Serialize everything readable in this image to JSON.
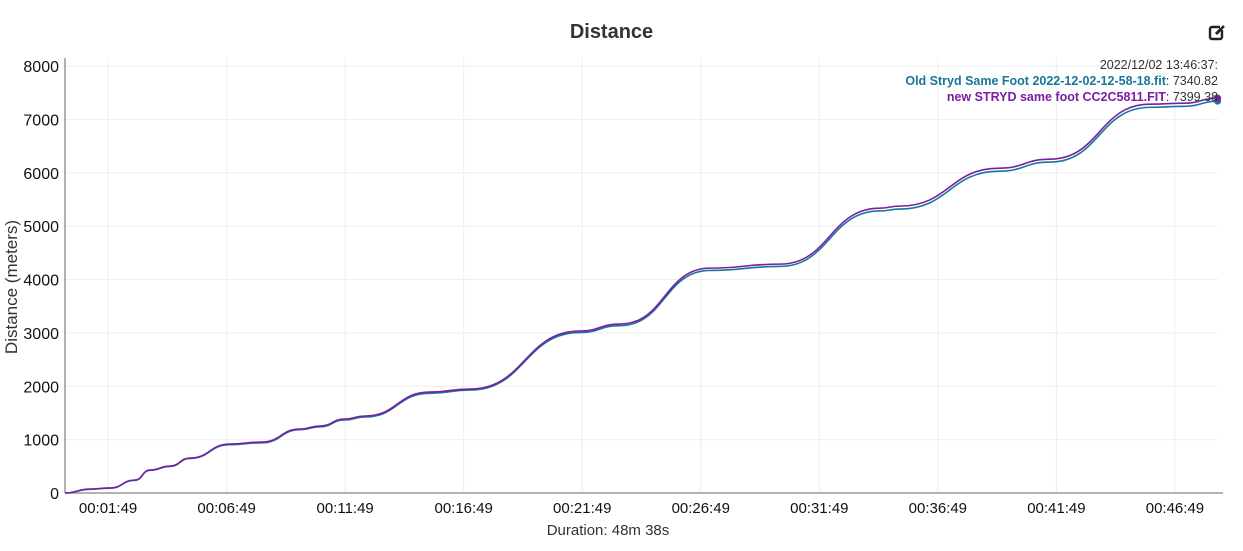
{
  "chart_data": {
    "type": "line",
    "title": "Distance",
    "xlabel": "Duration: 48m 38s",
    "ylabel": "Distance (meters)",
    "x_unit": "seconds elapsed",
    "xlim": [
      0,
      2918
    ],
    "ylim": [
      0,
      8150
    ],
    "yticks": [
      0,
      1000,
      2000,
      3000,
      4000,
      5000,
      6000,
      7000,
      8000
    ],
    "xticks": [
      {
        "value": 109,
        "label": "00:01:49"
      },
      {
        "value": 409,
        "label": "00:06:49"
      },
      {
        "value": 709,
        "label": "00:11:49"
      },
      {
        "value": 1009,
        "label": "00:16:49"
      },
      {
        "value": 1309,
        "label": "00:21:49"
      },
      {
        "value": 1609,
        "label": "00:26:49"
      },
      {
        "value": 1909,
        "label": "00:31:49"
      },
      {
        "value": 2209,
        "label": "00:36:49"
      },
      {
        "value": 2509,
        "label": "00:41:49"
      },
      {
        "value": 2809,
        "label": "00:46:49"
      }
    ],
    "grid": true,
    "x": [
      0,
      63,
      114,
      177,
      215,
      266,
      316,
      417,
      498,
      595,
      645,
      708,
      759,
      923,
      1025,
      1303,
      1404,
      1632,
      1809,
      2062,
      2112,
      2365,
      2492,
      2745,
      2834,
      2917
    ],
    "series": [
      {
        "name": "Old Stryd Same Foot 2022-12-02-12-58-18.fit",
        "color": "#17779a",
        "values": [
          0,
          70,
          90,
          238,
          425,
          498,
          648,
          905,
          940,
          1185,
          1240,
          1368,
          1425,
          1868,
          1928,
          3005,
          3135,
          4170,
          4245,
          5285,
          5320,
          6030,
          6200,
          7225,
          7245,
          7340.82
        ]
      },
      {
        "name": "new STRYD same foot CC2C5811.FIT",
        "color": "#7b1ea2",
        "values": [
          0,
          75,
          94,
          243,
          431,
          506,
          655,
          918,
          955,
          1199,
          1255,
          1386,
          1442,
          1891,
          1948,
          3034,
          3165,
          4213,
          4288,
          5337,
          5375,
          6086,
          6255,
          7285,
          7303,
          7399.38
        ]
      }
    ],
    "tooltip": {
      "time": "2022/12/02 13:46:37:",
      "values": [
        "7340.82",
        "7399.38"
      ]
    }
  },
  "icons": {
    "edit": "edit-icon"
  }
}
